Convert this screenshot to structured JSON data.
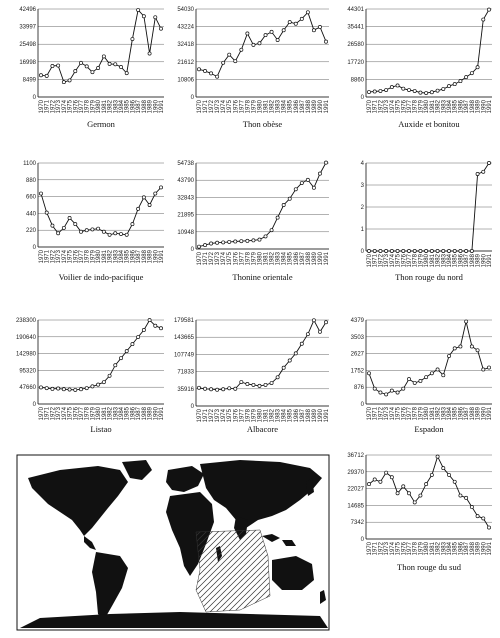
{
  "chart_data": [
    {
      "type": "line",
      "title": "Germon",
      "x_tick_labels": [
        "1970",
        "1971",
        "1972",
        "1973",
        "1974",
        "1975",
        "1976",
        "1977",
        "1978",
        "1979",
        "1980",
        "1981",
        "1982",
        "1983",
        "1984",
        "1985",
        "1986",
        "1987",
        "1988",
        "1989",
        "1990",
        "1991"
      ],
      "y_tick_labels": [
        "42496",
        "33997",
        "25498",
        "16998",
        "8499",
        "0"
      ],
      "ylim": [
        0,
        42496
      ],
      "values": [
        10500,
        10200,
        15000,
        15200,
        7200,
        8000,
        12500,
        16500,
        14800,
        12000,
        14000,
        19600,
        16000,
        15800,
        14500,
        11500,
        28000,
        42000,
        39000,
        21000,
        38500,
        33000
      ]
    },
    {
      "type": "line",
      "title": "Thon obèse",
      "x_tick_labels": [
        "1970",
        "1971",
        "1972",
        "1973",
        "1974",
        "1975",
        "1976",
        "1977",
        "1978",
        "1979",
        "1980",
        "1981",
        "1982",
        "1983",
        "1984",
        "1985",
        "1986",
        "1987",
        "1988",
        "1989",
        "1990",
        "1991"
      ],
      "y_tick_labels": [
        "54030",
        "43224",
        "32418",
        "21612",
        "10806",
        "0"
      ],
      "ylim": [
        0,
        54030
      ],
      "values": [
        17000,
        16000,
        14500,
        12500,
        21000,
        26000,
        22000,
        29000,
        39000,
        32000,
        33000,
        38000,
        40000,
        35000,
        41000,
        46000,
        45000,
        48000,
        52000,
        41000,
        43000,
        34000
      ]
    },
    {
      "type": "line",
      "title": "Auxide et bonitou",
      "x_tick_labels": [
        "1970",
        "1971",
        "1972",
        "1973",
        "1974",
        "1975",
        "1976",
        "1977",
        "1978",
        "1979",
        "1980",
        "1981",
        "1982",
        "1983",
        "1984",
        "1985",
        "1986",
        "1987",
        "1988",
        "1989",
        "1990",
        "1991"
      ],
      "y_tick_labels": [
        "44301",
        "35441",
        "26580",
        "17720",
        "8860",
        "0"
      ],
      "ylim": [
        0,
        44301
      ],
      "values": [
        2500,
        2800,
        3000,
        3500,
        5000,
        5800,
        4200,
        3500,
        3000,
        2200,
        2000,
        2400,
        3200,
        4000,
        5500,
        6500,
        8000,
        10000,
        12000,
        15000,
        39000,
        44000
      ]
    },
    {
      "type": "line",
      "title": "Voilier de indo-pacifique",
      "x_tick_labels": [
        "1970",
        "1971",
        "1972",
        "1973",
        "1974",
        "1975",
        "1976",
        "1977",
        "1978",
        "1979",
        "1980",
        "1981",
        "1982",
        "1983",
        "1984",
        "1985",
        "1986",
        "1987",
        "1988",
        "1989",
        "1990",
        "1991"
      ],
      "y_tick_labels": [
        "1100",
        "880",
        "660",
        "440",
        "220",
        "0"
      ],
      "ylim": [
        0,
        1100
      ],
      "values": [
        700,
        450,
        280,
        180,
        250,
        380,
        300,
        200,
        220,
        230,
        240,
        200,
        160,
        180,
        170,
        160,
        300,
        500,
        650,
        550,
        700,
        780
      ]
    },
    {
      "type": "line",
      "title": "Thonine orientale",
      "x_tick_labels": [
        "1970",
        "1971",
        "1972",
        "1973",
        "1974",
        "1975",
        "1976",
        "1977",
        "1978",
        "1979",
        "1980",
        "1981",
        "1982",
        "1983",
        "1984",
        "1985",
        "1986",
        "1987",
        "1988",
        "1989",
        "1990",
        "1991"
      ],
      "y_tick_labels": [
        "54738",
        "43790",
        "32843",
        "21895",
        "10948",
        "0"
      ],
      "ylim": [
        0,
        54738
      ],
      "values": [
        1500,
        2500,
        3500,
        4000,
        4200,
        4500,
        4800,
        5000,
        5200,
        5500,
        6000,
        8000,
        12000,
        20000,
        28000,
        32000,
        38000,
        42000,
        44000,
        39000,
        48000,
        55000
      ]
    },
    {
      "type": "line",
      "title": "Thon rouge du nord",
      "x_tick_labels": [
        "1970",
        "1971",
        "1972",
        "1973",
        "1974",
        "1975",
        "1976",
        "1977",
        "1978",
        "1979",
        "1980",
        "1981",
        "1982",
        "1983",
        "1984",
        "1985",
        "1986",
        "1987",
        "1988",
        "1989",
        "1990",
        "1991"
      ],
      "y_tick_labels": [
        "4",
        "3",
        "2",
        "1",
        "0"
      ],
      "ylim": [
        0,
        4
      ],
      "values": [
        0,
        0,
        0,
        0,
        0,
        0,
        0,
        0,
        0,
        0,
        0,
        0,
        0,
        0,
        0,
        0,
        0,
        0,
        0,
        3.5,
        3.6,
        4
      ]
    },
    {
      "type": "line",
      "title": "Listao",
      "x_tick_labels": [
        "1970",
        "1971",
        "1972",
        "1973",
        "1974",
        "1975",
        "1976",
        "1977",
        "1978",
        "1979",
        "1980",
        "1981",
        "1982",
        "1983",
        "1984",
        "1985",
        "1986",
        "1987",
        "1988",
        "1989",
        "1990",
        "1991"
      ],
      "y_tick_labels": [
        "238300",
        "190640",
        "142980",
        "95320",
        "47660",
        "0"
      ],
      "ylim": [
        0,
        238300
      ],
      "values": [
        47000,
        45000,
        43000,
        44000,
        42000,
        41000,
        40000,
        42000,
        45000,
        50000,
        55000,
        62000,
        80000,
        110000,
        130000,
        150000,
        170000,
        190000,
        210000,
        238000,
        222000,
        215000
      ]
    },
    {
      "type": "line",
      "title": "Albacore",
      "x_tick_labels": [
        "1970",
        "1971",
        "1972",
        "1973",
        "1974",
        "1975",
        "1976",
        "1977",
        "1978",
        "1979",
        "1980",
        "1981",
        "1982",
        "1983",
        "1984",
        "1985",
        "1986",
        "1987",
        "1988",
        "1989",
        "1990",
        "1991"
      ],
      "y_tick_labels": [
        "179581",
        "143665",
        "107749",
        "71833",
        "35916",
        "0"
      ],
      "ylim": [
        0,
        179581
      ],
      "values": [
        38000,
        36000,
        35000,
        34000,
        35000,
        37000,
        36000,
        50000,
        46000,
        44000,
        42000,
        44000,
        48000,
        60000,
        80000,
        95000,
        110000,
        130000,
        150000,
        179000,
        155000,
        175000
      ]
    },
    {
      "type": "line",
      "title": "Espadon",
      "x_tick_labels": [
        "1970",
        "1971",
        "1972",
        "1973",
        "1974",
        "1975",
        "1976",
        "1977",
        "1978",
        "1979",
        "1980",
        "1981",
        "1982",
        "1983",
        "1984",
        "1985",
        "1986",
        "1987",
        "1988",
        "1989",
        "1990",
        "1991"
      ],
      "y_tick_labels": [
        "4379",
        "3503",
        "2627",
        "1752",
        "876",
        "0"
      ],
      "ylim": [
        0,
        4379
      ],
      "values": [
        1600,
        800,
        600,
        500,
        700,
        600,
        800,
        1300,
        1100,
        1200,
        1400,
        1600,
        1800,
        1500,
        2500,
        2900,
        3000,
        4300,
        3000,
        2800,
        1800,
        1900
      ]
    },
    {
      "type": "line",
      "title": "Thon rouge du sud",
      "x_tick_labels": [
        "1970",
        "1971",
        "1972",
        "1973",
        "1974",
        "1975",
        "1976",
        "1977",
        "1978",
        "1979",
        "1980",
        "1981",
        "1982",
        "1983",
        "1984",
        "1985",
        "1986",
        "1987",
        "1988",
        "1989",
        "1990",
        "1991"
      ],
      "y_tick_labels": [
        "36712",
        "29370",
        "22027",
        "14685",
        "7342",
        "0"
      ],
      "ylim": [
        0,
        36712
      ],
      "values": [
        24000,
        26000,
        25000,
        29000,
        27000,
        20000,
        23000,
        20000,
        16000,
        19000,
        24000,
        28000,
        36000,
        31000,
        28000,
        25000,
        19000,
        18000,
        14000,
        10000,
        9000,
        5000
      ]
    }
  ],
  "map": {
    "type": "world-map",
    "hatch": "fishing-area-south-indian-ocean"
  }
}
